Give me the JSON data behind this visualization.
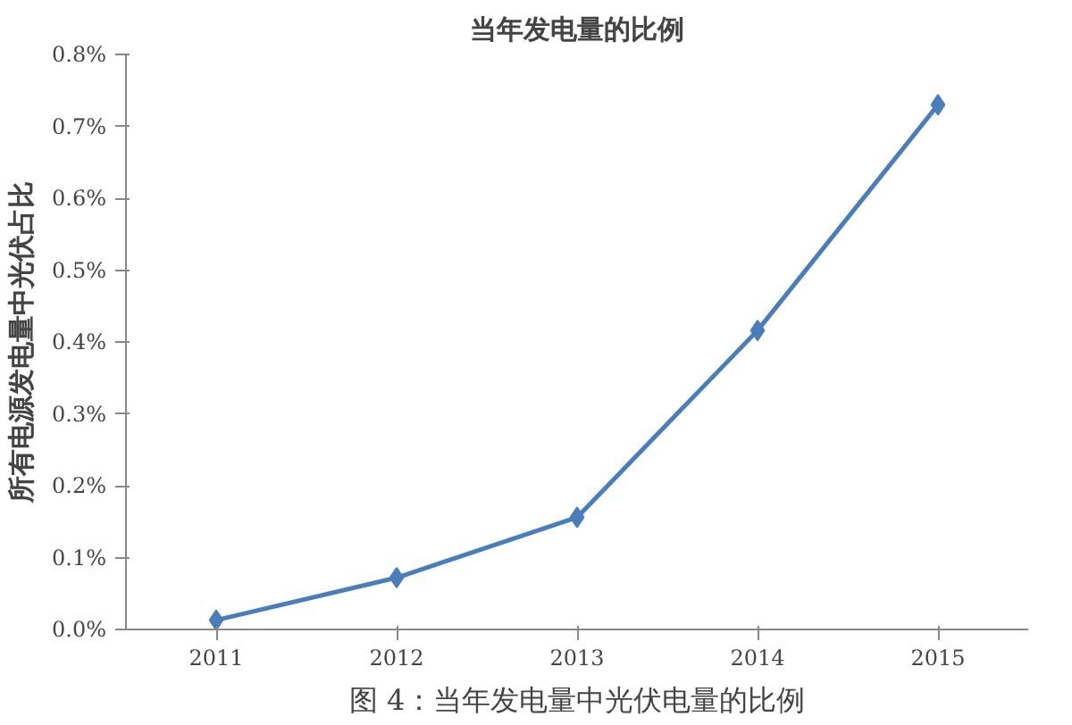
{
  "chart_data": {
    "type": "line",
    "title": "当年发电量的比例",
    "ylabel": "所有电源发电量中光伏占比",
    "categories": [
      "2011",
      "2012",
      "2013",
      "2014",
      "2015"
    ],
    "series": [
      {
        "color": "#4a7ebb",
        "values": [
          0.013,
          0.072,
          0.156,
          0.416,
          0.73
        ]
      }
    ],
    "ylim": [
      0,
      0.8
    ],
    "yticks": [
      {
        "value": 0,
        "label": "0.0%"
      },
      {
        "value": 0.1,
        "label": "0.1%"
      },
      {
        "value": 0.2,
        "label": "0.2%"
      },
      {
        "value": 0.3,
        "label": "0.3%"
      },
      {
        "value": 0.4,
        "label": "0.4%"
      },
      {
        "value": 0.5,
        "label": "0.5%"
      },
      {
        "value": 0.6,
        "label": "0.6%"
      },
      {
        "value": 0.7,
        "label": "0.7%"
      },
      {
        "value": 0.8,
        "label": "0.8%"
      }
    ],
    "marker": "diamond",
    "line_style": "solid",
    "grid": false,
    "annotations": [
      "图 4：当年发电量中光伏电量的比例"
    ]
  }
}
